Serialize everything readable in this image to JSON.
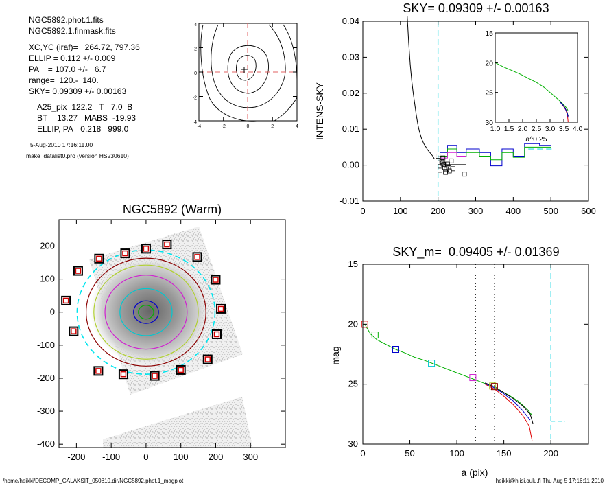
{
  "info": {
    "lines_a": [
      "NGC5892.phot.1.fits",
      "NGC5892.1.finmask.fits"
    ],
    "lines_b": [
      "XC,YC (iraf)=   264.72, 797.36",
      "ELLIP = 0.112 +/- 0.009",
      "PA    = 107.0 +/-   6.7",
      "range=  120.-  140.",
      "SKY= 0.09309 +/- 0.00163"
    ],
    "lines_c": [
      "A25_pix=122.2   T= 7.0  B",
      "BT=  13.27   MABS=-19.93",
      "ELLIP, PA= 0.218   999.0"
    ],
    "date": "5-Aug-2010 17:16:11.00",
    "program": "make_datalist0.pro (version HS230610)"
  },
  "footer": {
    "left": "/home/heikki/DECOMP_GALAKSIT_050810.dir/NGC5892.phot.1_magplot",
    "right": "heikki@hiisi.oulu.fi  Thu Aug  5 17:16:11 2010"
  },
  "chart_data": [
    {
      "id": "contour",
      "type": "contour",
      "xlim": [
        -4,
        4
      ],
      "ylim": [
        -4,
        4
      ],
      "xticks": [
        "-4",
        "-2",
        "0",
        "2",
        "4"
      ],
      "yticks": [
        "4",
        "2",
        "0",
        "-2",
        "-4"
      ]
    },
    {
      "id": "image",
      "type": "image",
      "title": "NGC5892 (Warm)",
      "xlim": [
        -250,
        400
      ],
      "ylim": [
        -410,
        280
      ],
      "xticks": [
        "-200",
        "-100",
        "0",
        "100",
        "200",
        "300"
      ],
      "yticks": [
        "200",
        "100",
        "0",
        "-100",
        "-200",
        "-300",
        "-400"
      ],
      "ellipse_axes": [
        22,
        36,
        75,
        118,
        150,
        172,
        198
      ],
      "ellipse_colors": [
        "#00b000",
        "#0000cc",
        "#00c8d0",
        "#d020d0",
        "#b0d030",
        "#8b0000",
        "#00e5ee"
      ],
      "markers": [
        [
          -195,
          125
        ],
        [
          -135,
          162
        ],
        [
          -60,
          178
        ],
        [
          0,
          192
        ],
        [
          60,
          205
        ],
        [
          147,
          167
        ],
        [
          200,
          98
        ],
        [
          215,
          10
        ],
        [
          203,
          -67
        ],
        [
          177,
          -143
        ],
        [
          100,
          -175
        ],
        [
          25,
          -193
        ],
        [
          -65,
          -188
        ],
        [
          -137,
          -178
        ],
        [
          -208,
          -58
        ],
        [
          -230,
          35
        ]
      ]
    },
    {
      "id": "sky",
      "type": "line",
      "title": "SKY= 0.09309 +/- 0.00163",
      "xlabel": "",
      "ylabel": "INTENS-SKY",
      "xlim": [
        0,
        600
      ],
      "ylim": [
        -0.01,
        0.04
      ],
      "xticks": [
        "0",
        "100",
        "200",
        "300",
        "400",
        "500",
        "600"
      ],
      "yticks": [
        "0.04",
        "0.03",
        "0.02",
        "0.01",
        "0.00",
        "-0.01"
      ],
      "sky_value": 0.0,
      "vline": 200,
      "series": [
        {
          "color": "#000000",
          "x": [
            118,
            122,
            126,
            130,
            134,
            138,
            142,
            146,
            150,
            156,
            162,
            168,
            172,
            176,
            180,
            186,
            190
          ],
          "y": [
            0.0415,
            0.034,
            0.028,
            0.0235,
            0.02,
            0.017,
            0.014,
            0.0115,
            0.0095,
            0.0075,
            0.006,
            0.005,
            0.0043,
            0.0038,
            0.0033,
            0.0025,
            0.0018
          ]
        },
        {
          "color": "#000000",
          "x": [
            200,
            275
          ],
          "y": [
            0.0001,
            0.0001
          ]
        },
        {
          "color": "#0000cc",
          "x": [
            205,
            225,
            225,
            250,
            250,
            275,
            275,
            310,
            310,
            340,
            340,
            370,
            370,
            400,
            400,
            430,
            430,
            470,
            470,
            500
          ],
          "y": [
            0.0035,
            0.0035,
            0.0055,
            0.0055,
            0.0035,
            0.0035,
            0.0045,
            0.0045,
            0.0035,
            0.0035,
            -0.0002,
            -0.0002,
            0.0045,
            0.0045,
            0.0025,
            0.0025,
            0.006,
            0.006,
            0.0055,
            0.0055
          ]
        },
        {
          "color": "#00b000",
          "x": [
            205,
            225,
            225,
            250,
            250,
            275,
            275,
            310,
            310,
            340,
            340,
            370,
            370,
            400,
            400,
            430,
            430,
            470,
            470,
            500
          ],
          "y": [
            0.0025,
            0.0025,
            0.0045,
            0.0045,
            0.0025,
            0.0025,
            0.0035,
            0.0035,
            0.0025,
            0.0025,
            0.0015,
            0.0015,
            0.0035,
            0.0035,
            0.0022,
            0.0022,
            0.005,
            0.005,
            0.005,
            0.005
          ]
        },
        {
          "color": "#d020d0",
          "x": [
            205,
            225,
            225,
            250,
            250,
            275
          ],
          "y": [
            0.002,
            0.002,
            0.0035,
            0.0035,
            0.0025,
            0.0025
          ]
        }
      ],
      "boxes": {
        "x": [
          200,
          205,
          210,
          212,
          215,
          218,
          222,
          225,
          230,
          235,
          205,
          213,
          220,
          228,
          240,
          270
        ],
        "y": [
          0.0025,
          0.0018,
          0.001,
          0.0005,
          0.0002,
          -0.0006,
          -0.0012,
          0.0003,
          -0.0016,
          0.0012,
          -0.0014,
          0.002,
          -0.002,
          -0.0007,
          -0.001,
          -0.0025
        ]
      },
      "sky_dash": {
        "x": [
          440,
          510
        ],
        "y": [
          0.0045,
          0.0045
        ]
      }
    },
    {
      "id": "inset",
      "type": "line",
      "xlabel": "a^0.25",
      "xlim": [
        1.0,
        4.0
      ],
      "ylim": [
        15,
        30
      ],
      "xticks": [
        "1.0",
        "1.5",
        "2.0",
        "2.5",
        "3.0",
        "3.5",
        "4.0"
      ],
      "yticks": [
        "15",
        "20",
        "25",
        "30"
      ],
      "series": [
        {
          "color": "#00b000",
          "x": [
            1.0,
            1.3,
            1.6,
            1.9,
            2.2,
            2.5,
            2.8,
            3.0,
            3.2,
            3.35,
            3.5,
            3.6,
            3.65
          ],
          "y": [
            20.0,
            20.7,
            21.3,
            21.9,
            22.6,
            23.3,
            24.2,
            25.0,
            25.8,
            26.4,
            27.1,
            27.6,
            28.0
          ]
        },
        {
          "color": "#000000",
          "x": [
            3.35,
            3.45,
            3.55,
            3.62,
            3.66
          ],
          "y": [
            26.5,
            27.0,
            27.6,
            28.3,
            29.0
          ]
        },
        {
          "color": "#e00000",
          "x": [
            3.4,
            3.5,
            3.58,
            3.63,
            3.66
          ],
          "y": [
            26.8,
            27.4,
            28.0,
            28.8,
            30.0
          ]
        },
        {
          "color": "#0000cc",
          "x": [
            3.38,
            3.48,
            3.56,
            3.62,
            3.66
          ],
          "y": [
            26.7,
            27.2,
            27.8,
            28.4,
            29.2
          ]
        }
      ]
    },
    {
      "id": "mag",
      "type": "line",
      "title": "SKY_m=  0.09405 +/- 0.01369",
      "xlabel": "a (pix)",
      "ylabel": "mag",
      "xlim": [
        0,
        240
      ],
      "ylim": [
        15,
        30
      ],
      "xticks": [
        "0",
        "50",
        "100",
        "150",
        "200"
      ],
      "yticks": [
        "15",
        "20",
        "25",
        "30"
      ],
      "vlines_dotted": [
        120,
        140
      ],
      "vline_dashed": 200,
      "series": [
        {
          "color": "#00b000",
          "x": [
            2,
            8,
            15,
            25,
            35,
            45,
            55,
            65,
            75,
            85,
            95,
            105,
            115,
            125,
            135,
            145,
            155,
            165,
            175,
            180
          ],
          "y": [
            20.0,
            20.8,
            21.3,
            21.7,
            22.1,
            22.4,
            22.75,
            23.0,
            23.3,
            23.6,
            23.9,
            24.2,
            24.5,
            24.8,
            25.1,
            25.5,
            25.9,
            26.4,
            27.1,
            27.6
          ]
        },
        {
          "color": "#000000",
          "x": [
            130,
            140,
            150,
            160,
            170,
            178,
            181
          ],
          "y": [
            24.9,
            25.2,
            25.7,
            26.2,
            26.8,
            27.5,
            28.3
          ]
        },
        {
          "color": "#e00000",
          "x": [
            130,
            140,
            150,
            160,
            170,
            177,
            180
          ],
          "y": [
            25.0,
            25.4,
            26.0,
            26.7,
            27.6,
            28.5,
            29.7
          ]
        },
        {
          "color": "#0000cc",
          "x": [
            130,
            140,
            150,
            160,
            170,
            178
          ],
          "y": [
            24.95,
            25.3,
            25.8,
            26.4,
            27.2,
            28.0
          ]
        }
      ],
      "markers": [
        {
          "x": 2,
          "y": 20.0,
          "color": "#e00000"
        },
        {
          "x": 13,
          "y": 20.9,
          "color": "#00b000"
        },
        {
          "x": 35,
          "y": 22.1,
          "color": "#0000cc"
        },
        {
          "x": 73,
          "y": 23.25,
          "color": "#00c8d0"
        },
        {
          "x": 117,
          "y": 24.45,
          "color": "#d020d0"
        },
        {
          "x": 138,
          "y": 25.15,
          "color": "#b0d030"
        },
        {
          "x": 140,
          "y": 25.2,
          "color": "#8b0000"
        }
      ],
      "sky_dash": {
        "x": [
          200,
          215
        ],
        "y": [
          28.1,
          28.1
        ]
      }
    }
  ]
}
